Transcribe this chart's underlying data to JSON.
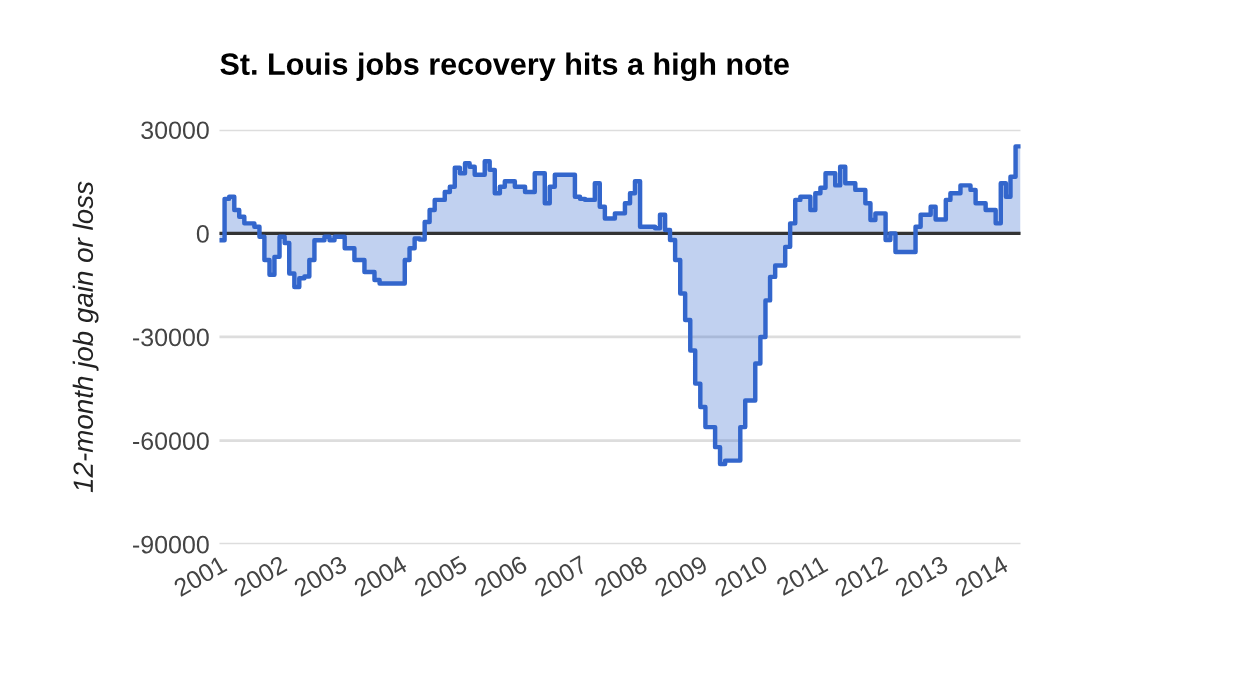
{
  "chart_data": {
    "type": "step",
    "title": "St. Louis jobs recovery hits a high note",
    "ylabel": "12-month job gain or loss",
    "x": [
      "2001-01",
      "2001-02",
      "2001-03",
      "2001-04",
      "2001-05",
      "2001-06",
      "2001-08",
      "2001-09",
      "2001-10",
      "2001-11",
      "2001-12",
      "2002-01",
      "2002-02",
      "2002-03",
      "2002-04",
      "2002-05",
      "2002-06",
      "2002-07",
      "2002-08",
      "2002-10",
      "2002-11",
      "2002-12",
      "2003-02",
      "2003-04",
      "2003-06",
      "2003-08",
      "2003-09",
      "2003-11",
      "2004-02",
      "2004-03",
      "2004-04",
      "2004-05",
      "2004-06",
      "2004-07",
      "2004-08",
      "2004-10",
      "2004-11",
      "2004-12",
      "2005-01",
      "2005-02",
      "2005-03",
      "2005-04",
      "2005-06",
      "2005-07",
      "2005-08",
      "2005-09",
      "2005-10",
      "2005-12",
      "2006-02",
      "2006-04",
      "2006-06",
      "2006-07",
      "2006-08",
      "2006-09",
      "2006-12",
      "2007-01",
      "2007-02",
      "2007-04",
      "2007-05",
      "2007-06",
      "2007-08",
      "2007-10",
      "2007-11",
      "2007-12",
      "2008-01",
      "2008-04",
      "2008-05",
      "2008-06",
      "2008-07",
      "2008-08",
      "2008-09",
      "2008-10",
      "2008-11",
      "2008-12",
      "2009-01",
      "2009-02",
      "2009-04",
      "2009-05",
      "2009-06",
      "2009-08",
      "2009-09",
      "2009-10",
      "2009-12",
      "2010-01",
      "2010-02",
      "2010-03",
      "2010-04",
      "2010-06",
      "2010-07",
      "2010-08",
      "2010-09",
      "2010-11",
      "2010-12",
      "2011-01",
      "2011-02",
      "2011-04",
      "2011-05",
      "2011-06",
      "2011-08",
      "2011-10",
      "2011-11",
      "2011-12",
      "2012-02",
      "2012-03",
      "2012-04",
      "2012-07",
      "2012-08",
      "2012-09",
      "2012-11",
      "2012-12",
      "2013-02",
      "2013-03",
      "2013-05",
      "2013-07",
      "2013-08",
      "2013-10",
      "2013-12",
      "2014-01",
      "2014-02",
      "2014-03",
      "2014-04",
      "2014-05"
    ],
    "series": [
      {
        "color": "#3366cc",
        "values": [
          -2000,
          10000,
          10600,
          6800,
          4800,
          2900,
          1900,
          -1000,
          -7700,
          -12000,
          -6800,
          -1000,
          -2800,
          -11600,
          -15500,
          -13000,
          -12500,
          -7700,
          -2000,
          -1000,
          -2000,
          -1000,
          -4300,
          -7700,
          -11200,
          -13500,
          -14500,
          -14500,
          -7700,
          -4300,
          -1500,
          -1800,
          3300,
          6800,
          9700,
          12000,
          13500,
          19000,
          17400,
          20300,
          19300,
          17000,
          20900,
          18400,
          11600,
          13500,
          15100,
          13500,
          12000,
          17400,
          8700,
          13500,
          17000,
          17000,
          10600,
          10000,
          9700,
          14500,
          7700,
          4300,
          5800,
          8700,
          11600,
          15100,
          1900,
          1500,
          5400,
          1000,
          -1900,
          -7700,
          -17400,
          -25100,
          -33900,
          -43500,
          -50300,
          -56100,
          -61900,
          -66800,
          -65800,
          -65800,
          -56100,
          -48400,
          -37700,
          -30000,
          -19400,
          -12600,
          -9300,
          -3900,
          2900,
          9700,
          10600,
          6800,
          11600,
          13200,
          17400,
          13900,
          19300,
          14500,
          12600,
          8700,
          3900,
          5800,
          -1900,
          0,
          -5400,
          -5400,
          1900,
          5400,
          7700,
          4000,
          9700,
          11600,
          13900,
          12600,
          8700,
          6800,
          2900,
          14500,
          10600,
          16400,
          25200,
          25200
        ]
      }
    ],
    "ylim": [
      -90000,
      30000
    ],
    "yticks": [
      -90000,
      -60000,
      -30000,
      0,
      30000
    ],
    "xlim": [
      "2001-01",
      "2014-05"
    ],
    "xticks": [
      "2001",
      "2002",
      "2003",
      "2004",
      "2005",
      "2006",
      "2007",
      "2008",
      "2009",
      "2010",
      "2011",
      "2012",
      "2013",
      "2014"
    ],
    "grid": "y",
    "ref_lines": [
      {
        "axis": "y",
        "value": 0,
        "color": "#333333"
      }
    ]
  }
}
